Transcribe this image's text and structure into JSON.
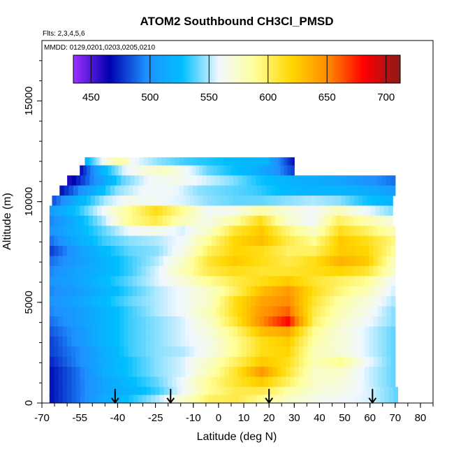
{
  "chart_data": {
    "type": "heatmap",
    "title": "ATOM2 Southbound CH3Cl_PMSD",
    "subtitle_flights": "Flts: 2,3,4,5,6",
    "subtitle_dates": "MMDD: 0129,0201,0203,0205,0210",
    "xlabel": "Latitude (deg N)",
    "ylabel": "Altitude (m)",
    "xlim": [
      -70,
      85
    ],
    "ylim": [
      0,
      18000
    ],
    "x_ticks": [
      -70,
      -55,
      -40,
      -25,
      -10,
      0,
      10,
      20,
      30,
      40,
      50,
      60,
      70,
      80
    ],
    "y_ticks": [
      0,
      5000,
      10000,
      15000
    ],
    "colorbar": {
      "min": 435,
      "max": 712,
      "ticks": [
        450,
        500,
        550,
        600,
        650,
        700
      ],
      "colors": [
        "#9b30ff",
        "#0000b0",
        "#1e90ff",
        "#00bfff",
        "#f0f8ff",
        "#ffff99",
        "#ffd700",
        "#ff8c00",
        "#ff0000",
        "#8b1a1a"
      ]
    },
    "data_extent": {
      "lat_range": [
        -68,
        72
      ],
      "alt_range": [
        0,
        12500
      ]
    },
    "arrows_lat": [
      -41,
      -19,
      20,
      61
    ],
    "bands": [
      {
        "alt": 11950,
        "lat_min": -53,
        "lat_max": -35,
        "values": [
          520,
          545,
          570,
          585,
          575
        ]
      },
      {
        "alt": 11950,
        "lat_min": -35,
        "lat_max": 20,
        "values": [
          560,
          545,
          535,
          530,
          525,
          520
        ]
      },
      {
        "alt": 11950,
        "lat_min": 20,
        "lat_max": 30,
        "values": [
          510,
          490,
          470
        ]
      },
      {
        "alt": 11550,
        "lat_min": -55,
        "lat_max": 30,
        "values": [
          470,
          520,
          555,
          570,
          575,
          560,
          540,
          530,
          520,
          505,
          480
        ]
      },
      {
        "alt": 11050,
        "lat_min": -60,
        "lat_max": 70,
        "values": [
          460,
          500,
          540,
          560,
          565,
          555,
          545,
          530,
          520,
          515,
          510,
          500,
          490
        ]
      },
      {
        "alt": 10550,
        "lat_min": -63,
        "lat_max": 70,
        "values": [
          470,
          510,
          545,
          560,
          560,
          545,
          540,
          535,
          525,
          520,
          520,
          515,
          505
        ]
      },
      {
        "alt": 10050,
        "lat_min": -66,
        "lat_max": 69,
        "values": [
          485,
          520,
          550,
          565,
          560,
          555,
          545,
          540,
          540,
          545,
          550,
          545,
          530,
          520
        ]
      },
      {
        "alt": 9550,
        "lat_min": -67,
        "lat_max": 69,
        "values": [
          505,
          530,
          560,
          590,
          615,
          590,
          560,
          565,
          585,
          570,
          560,
          580,
          560,
          545
        ]
      },
      {
        "alt": 9050,
        "lat_min": -67,
        "lat_max": 69,
        "values": [
          495,
          520,
          550,
          590,
          605,
          580,
          565,
          585,
          615,
          575,
          560,
          600,
          585,
          570
        ]
      },
      {
        "alt": 8550,
        "lat_min": -67,
        "lat_max": 70,
        "values": [
          500,
          520,
          540,
          560,
          565,
          555,
          575,
          610,
          625,
          595,
          575,
          615,
          600,
          580
        ]
      },
      {
        "alt": 8050,
        "lat_min": -67,
        "lat_max": 70,
        "values": [
          490,
          515,
          535,
          545,
          550,
          560,
          590,
          620,
          630,
          605,
          590,
          625,
          615,
          595
        ]
      },
      {
        "alt": 7550,
        "lat_min": -67,
        "lat_max": 70,
        "values": [
          480,
          505,
          525,
          540,
          545,
          565,
          600,
          620,
          615,
          600,
          600,
          625,
          620,
          590
        ]
      },
      {
        "alt": 7050,
        "lat_min": -67,
        "lat_max": 70,
        "values": [
          490,
          505,
          520,
          535,
          550,
          575,
          610,
          625,
          615,
          605,
          615,
          635,
          625,
          580
        ]
      },
      {
        "alt": 6550,
        "lat_min": -67,
        "lat_max": 70,
        "values": [
          495,
          510,
          520,
          535,
          555,
          580,
          605,
          615,
          610,
          610,
          615,
          620,
          610,
          575
        ]
      },
      {
        "alt": 6050,
        "lat_min": -67,
        "lat_max": 70,
        "values": [
          500,
          510,
          525,
          540,
          555,
          570,
          590,
          605,
          615,
          625,
          610,
          600,
          590,
          560
        ]
      },
      {
        "alt": 5550,
        "lat_min": -67,
        "lat_max": 70,
        "values": [
          495,
          505,
          520,
          535,
          550,
          560,
          575,
          600,
          630,
          645,
          615,
          595,
          580,
          555
        ]
      },
      {
        "alt": 5050,
        "lat_min": -67,
        "lat_max": 70,
        "values": [
          500,
          510,
          525,
          540,
          550,
          560,
          575,
          615,
          640,
          650,
          610,
          585,
          570,
          550
        ]
      },
      {
        "alt": 4550,
        "lat_min": -67,
        "lat_max": 70,
        "values": [
          495,
          505,
          520,
          535,
          550,
          560,
          580,
          615,
          645,
          660,
          605,
          580,
          565,
          545
        ]
      },
      {
        "alt": 4050,
        "lat_min": -67,
        "lat_max": 70,
        "values": [
          490,
          505,
          520,
          535,
          545,
          555,
          575,
          610,
          650,
          680,
          600,
          575,
          560,
          545
        ]
      },
      {
        "alt": 3550,
        "lat_min": -67,
        "lat_max": 70,
        "values": [
          485,
          500,
          520,
          535,
          545,
          555,
          570,
          595,
          630,
          640,
          590,
          570,
          555,
          540
        ]
      },
      {
        "alt": 3050,
        "lat_min": -67,
        "lat_max": 70,
        "values": [
          480,
          500,
          520,
          535,
          545,
          555,
          565,
          590,
          615,
          625,
          585,
          570,
          555,
          540
        ]
      },
      {
        "alt": 2550,
        "lat_min": -67,
        "lat_max": 70,
        "values": [
          480,
          495,
          515,
          535,
          545,
          550,
          565,
          590,
          615,
          620,
          580,
          570,
          555,
          540
        ]
      },
      {
        "alt": 2050,
        "lat_min": -67,
        "lat_max": 70,
        "values": [
          475,
          495,
          515,
          530,
          545,
          555,
          575,
          600,
          625,
          615,
          580,
          590,
          560,
          540
        ]
      },
      {
        "alt": 1550,
        "lat_min": -67,
        "lat_max": 70,
        "values": [
          470,
          490,
          515,
          530,
          545,
          555,
          580,
          610,
          645,
          610,
          575,
          575,
          555,
          540
        ]
      },
      {
        "alt": 1050,
        "lat_min": -67,
        "lat_max": 70,
        "values": [
          470,
          490,
          510,
          525,
          540,
          560,
          590,
          610,
          625,
          600,
          575,
          570,
          555,
          540
        ]
      },
      {
        "alt": 550,
        "lat_min": -67,
        "lat_max": 71,
        "values": [
          470,
          490,
          510,
          520,
          535,
          560,
          590,
          605,
          605,
          585,
          570,
          565,
          555,
          540
        ]
      },
      {
        "alt": 150,
        "lat_min": -67,
        "lat_max": 71,
        "values": [
          470,
          490,
          515,
          530,
          550,
          575,
          600,
          605,
          590,
          575,
          565,
          560,
          555,
          540
        ]
      }
    ]
  }
}
